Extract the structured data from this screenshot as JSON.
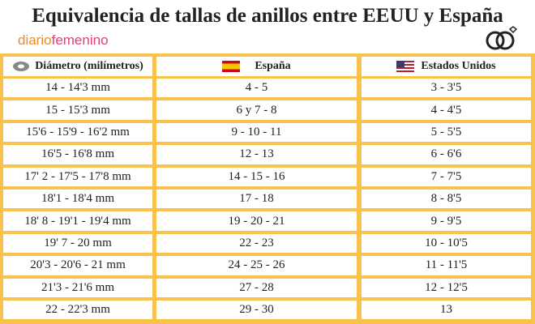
{
  "header": {
    "title": "Equivalencia de tallas de anillos entre EEUU y España",
    "logo": {
      "part1": "diario",
      "part2": "femenino"
    }
  },
  "table": {
    "columns": [
      "Diámetro (milímetros)",
      "España",
      "Estados Unidos"
    ],
    "rows": [
      [
        "14 - 14'3 mm",
        "4 - 5",
        "3 - 3'5"
      ],
      [
        "15 - 15'3 mm",
        "6 y 7 - 8",
        "4 - 4'5"
      ],
      [
        "15'6 - 15'9 - 16'2 mm",
        "9 - 10 - 11",
        "5 - 5'5"
      ],
      [
        "16'5 - 16'8 mm",
        "12 - 13",
        "6 - 6'6"
      ],
      [
        "17' 2 - 17'5 - 17'8 mm",
        "14 - 15 - 16",
        "7 - 7'5"
      ],
      [
        "18'1 - 18'4 mm",
        "17 - 18",
        "8 - 8'5"
      ],
      [
        "18' 8 - 19'1 - 19'4 mm",
        "19 - 20 - 21",
        "9 - 9'5"
      ],
      [
        "19' 7 - 20 mm",
        "22 - 23",
        "10 - 10'5"
      ],
      [
        "20'3 - 20'6 - 21 mm",
        "24 - 25 - 26",
        "11 - 11'5"
      ],
      [
        "21'3 - 21'6 mm",
        "27 - 28",
        "12 - 12'5"
      ],
      [
        "22 - 22'3 mm",
        "29 - 30",
        "13"
      ]
    ]
  }
}
